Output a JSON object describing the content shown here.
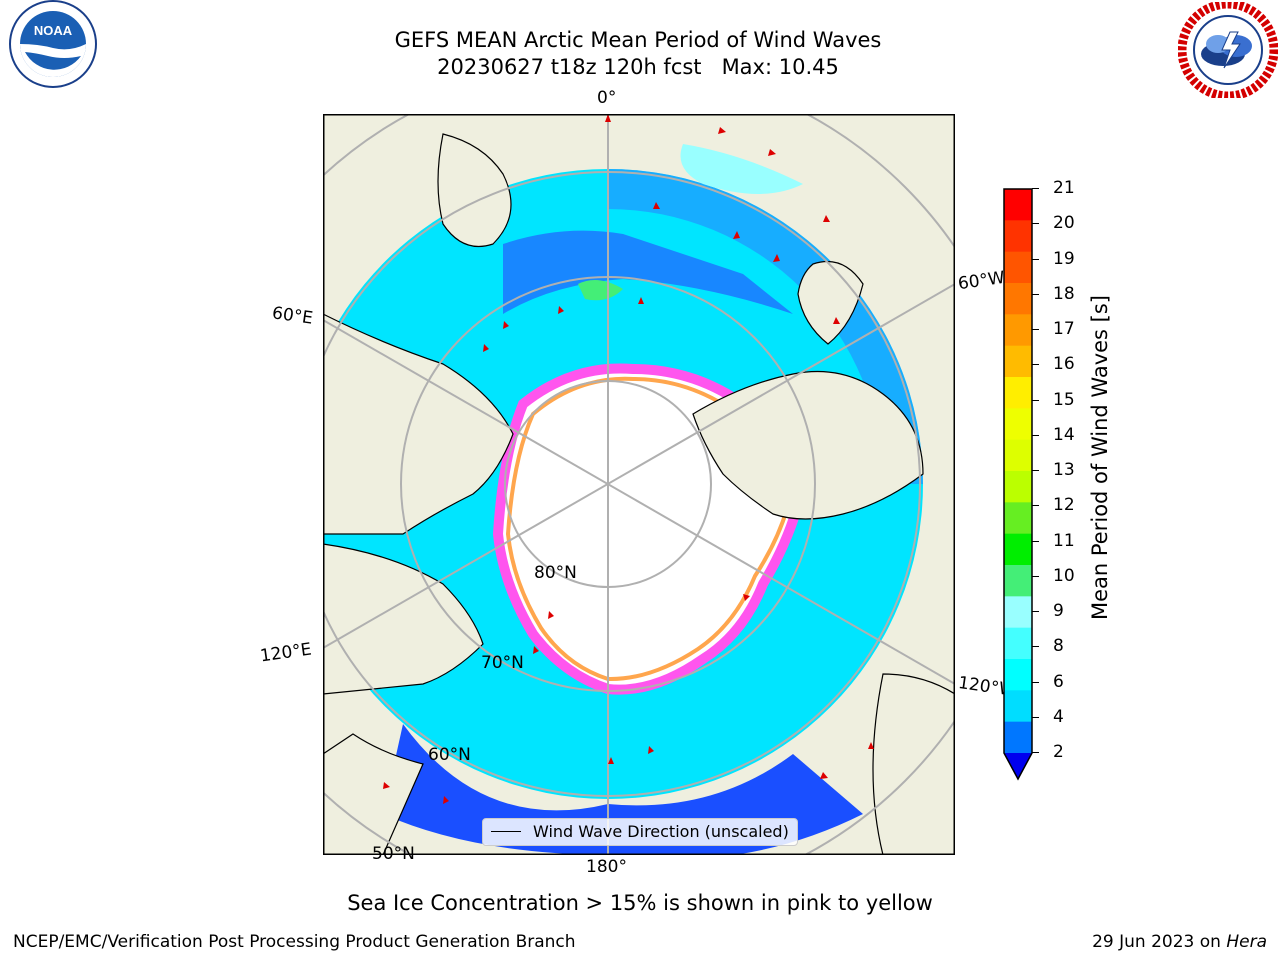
{
  "header": {
    "title_line1": "GEFS MEAN Arctic Mean Period of Wind Waves",
    "title_line2": "20230627 t18z 120h fcst   Max: 10.45"
  },
  "logos": {
    "left": {
      "name": "NOAA",
      "text": "NOAA"
    },
    "right": {
      "name": "NATIONAL WEATHER SERVICE"
    }
  },
  "map": {
    "projection": "north-polar-stereographic",
    "longitude_labels": {
      "top": "0°",
      "bottom": "180°",
      "left_upper": "60°E",
      "left_lower": "120°E",
      "right_upper": "60°W",
      "right_lower": "120°W"
    },
    "latitude_labels": {
      "lat80": "80°N",
      "lat70": "70°N",
      "lat60": "60°N",
      "lat50": "50°N"
    },
    "legend": {
      "label": "Wind Wave Direction (unscaled)"
    },
    "colors": {
      "land": "#efefdf",
      "ice": "#ffffff",
      "sea_ice_pink": "#ff55ee",
      "sea_ice_orange": "#ffa64d",
      "arrow": "#dd0000",
      "coast": "#000000",
      "grid": "#b0b0b0"
    }
  },
  "colorbar": {
    "label": "Mean Period of Wind Waves [s]",
    "ticks": [
      "21",
      "20",
      "19",
      "18",
      "17",
      "16",
      "15",
      "14",
      "13",
      "12",
      "11",
      "10",
      "9",
      "8",
      "6",
      "4",
      "2"
    ],
    "colors": [
      "#ff0000",
      "#ff3300",
      "#ff5500",
      "#ff7700",
      "#ff9900",
      "#ffbb00",
      "#ffee00",
      "#eeff00",
      "#ddff00",
      "#bbff00",
      "#66ee22",
      "#00ee00",
      "#44ee77",
      "#99ffff",
      "#44ffff",
      "#00ffff",
      "#00ddff",
      "#0077ff",
      "#0000ee"
    ]
  },
  "caption": "Sea Ice Concentration > 15% is shown in pink to yellow",
  "footer": {
    "left": "NCEP/EMC/Verification Post Processing Product Generation Branch",
    "right_date": "29 Jun 2023 on ",
    "right_machine": "Hera"
  }
}
